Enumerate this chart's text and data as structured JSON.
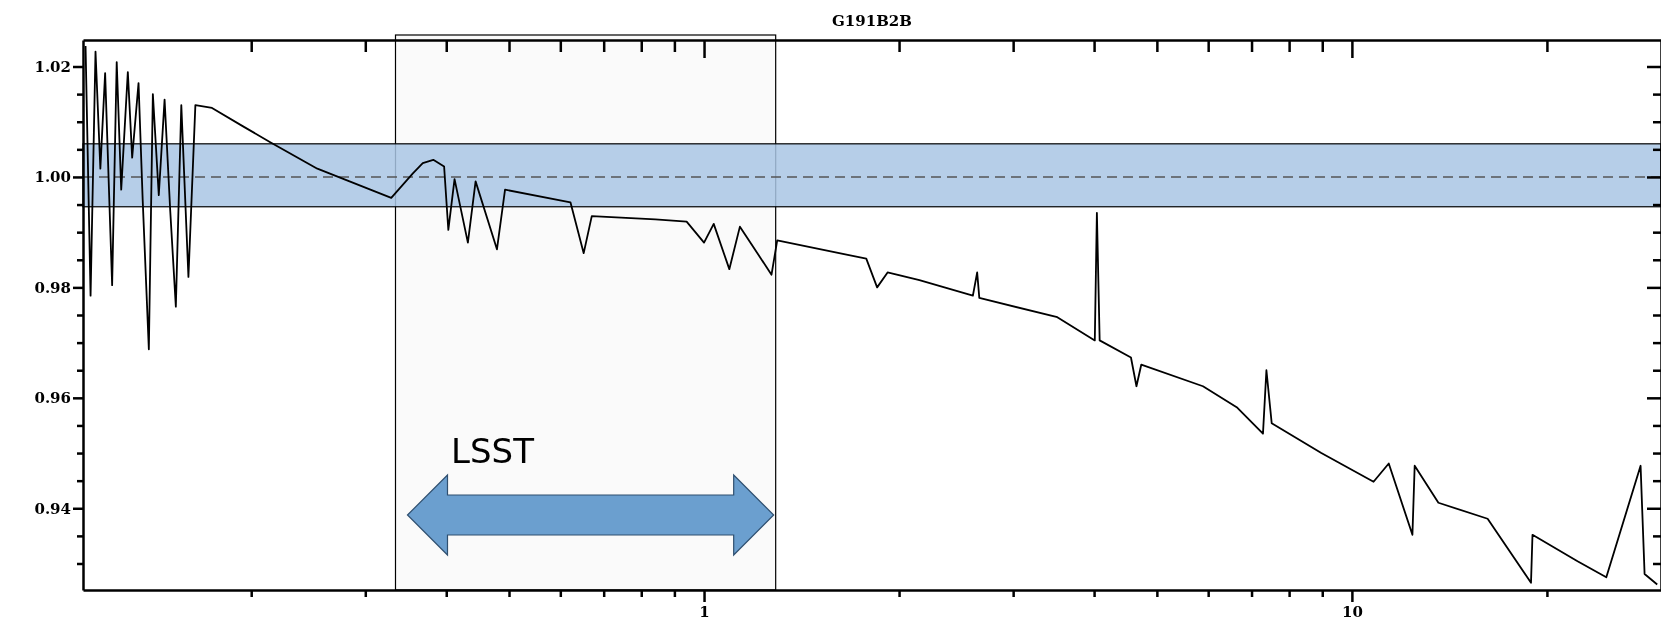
{
  "chart_data": {
    "type": "line",
    "title": "G191B2B",
    "x": [
      0.111,
      0.113,
      0.115,
      0.117,
      0.119,
      0.122,
      0.124,
      0.126,
      0.129,
      0.131,
      0.134,
      0.136,
      0.139,
      0.141,
      0.144,
      0.147,
      0.15,
      0.153,
      0.156,
      0.16,
      0.164,
      0.174,
      0.194,
      0.214,
      0.253,
      0.329,
      0.355,
      0.368,
      0.382,
      0.397,
      0.403,
      0.412,
      0.432,
      0.444,
      0.479,
      0.493,
      0.622,
      0.652,
      0.671,
      0.841,
      0.94,
      1.0,
      1.035,
      1.094,
      1.136,
      1.271,
      1.297,
      1.78,
      1.85,
      1.92,
      2.15,
      2.6,
      2.64,
      2.66,
      3.51,
      4.01,
      4.04,
      4.08,
      4.56,
      4.65,
      4.73,
      5.89,
      6.64,
      7.29,
      7.38,
      7.52,
      8.97,
      10.8,
      11.4,
      12.4,
      12.5,
      13.6,
      16.2,
      18.9,
      19.0,
      22.3,
      24.7,
      27.9,
      28.3,
      29.6
    ],
    "series": [
      {
        "color": "#000000",
        "values": [
          1.0237,
          0.9785,
          1.0227,
          1.0015,
          1.0188,
          0.9804,
          1.0208,
          0.9977,
          1.019,
          1.0035,
          1.017,
          0.9958,
          0.9688,
          1.015,
          0.9967,
          1.014,
          0.9938,
          0.9765,
          1.013,
          0.9819,
          1.013,
          1.0125,
          1.0092,
          1.0063,
          1.0015,
          0.9962,
          1.0006,
          1.0025,
          1.0031,
          1.0019,
          0.9904,
          0.9996,
          0.9881,
          0.9992,
          0.9869,
          0.9977,
          0.9954,
          0.9862,
          0.9929,
          0.9923,
          0.9919,
          0.9881,
          0.9915,
          0.9833,
          0.991,
          0.9823,
          0.9885,
          0.9852,
          0.98,
          0.9827,
          0.9813,
          0.9785,
          0.9827,
          0.9781,
          0.9746,
          0.9704,
          0.9935,
          0.9704,
          0.9673,
          0.9621,
          0.966,
          0.9621,
          0.9583,
          0.9535,
          0.965,
          0.9554,
          0.95,
          0.9448,
          0.9481,
          0.9352,
          0.9477,
          0.941,
          0.9381,
          0.9265,
          0.9352,
          0.9304,
          0.9275,
          0.9477,
          0.9281,
          0.9262
        ]
      }
    ],
    "log": "x",
    "xlim": [
      0.11,
      30
    ],
    "ylim": [
      0.9252,
      1.0248
    ],
    "xticks": [
      {
        "value": 0.2,
        "label": null
      },
      {
        "value": 0.3,
        "label": null
      },
      {
        "value": 0.4,
        "label": null
      },
      {
        "value": 0.5,
        "label": null
      },
      {
        "value": 0.6,
        "label": null
      },
      {
        "value": 0.7,
        "label": null
      },
      {
        "value": 0.8,
        "label": null
      },
      {
        "value": 0.9,
        "label": null
      },
      1,
      {
        "value": 2,
        "label": null
      },
      {
        "value": 3,
        "label": null
      },
      {
        "value": 4,
        "label": null
      },
      {
        "value": 5,
        "label": null
      },
      {
        "value": 6,
        "label": null
      },
      {
        "value": 7,
        "label": null
      },
      {
        "value": 8,
        "label": null
      },
      {
        "value": 9,
        "label": null
      },
      10,
      {
        "value": 20,
        "label": null
      }
    ],
    "yticks": [
      {
        "value": 0.93,
        "label": null
      },
      {
        "value": 0.935,
        "label": null
      },
      0.94,
      {
        "value": 0.945,
        "label": null
      },
      {
        "value": 0.95,
        "label": null
      },
      {
        "value": 0.955,
        "label": null
      },
      0.96,
      {
        "value": 0.965,
        "label": null
      },
      {
        "value": 0.97,
        "label": null
      },
      {
        "value": 0.975,
        "label": null
      },
      0.98,
      {
        "value": 0.985,
        "label": null
      },
      {
        "value": 0.99,
        "label": null
      },
      {
        "value": 0.995,
        "label": null
      },
      {
        "value": 1,
        "label": "1.00"
      },
      {
        "value": 1.005,
        "label": null
      },
      {
        "value": 1.01,
        "label": null
      },
      {
        "value": 1.015,
        "label": null
      },
      1.02
    ],
    "bands": [
      {
        "axis": "x",
        "from": 0.334,
        "to": 1.29,
        "label": "LSST",
        "color": "#fafafa"
      },
      {
        "axis": "y",
        "from": 0.9946,
        "to": 1.006,
        "color": "#a9c6e4"
      }
    ],
    "ref_lines": [
      {
        "axis": "y",
        "value": 1,
        "line_style": "dashed",
        "color": "#555555"
      }
    ],
    "grid": false,
    "line_style": "solid",
    "marker": "none"
  }
}
